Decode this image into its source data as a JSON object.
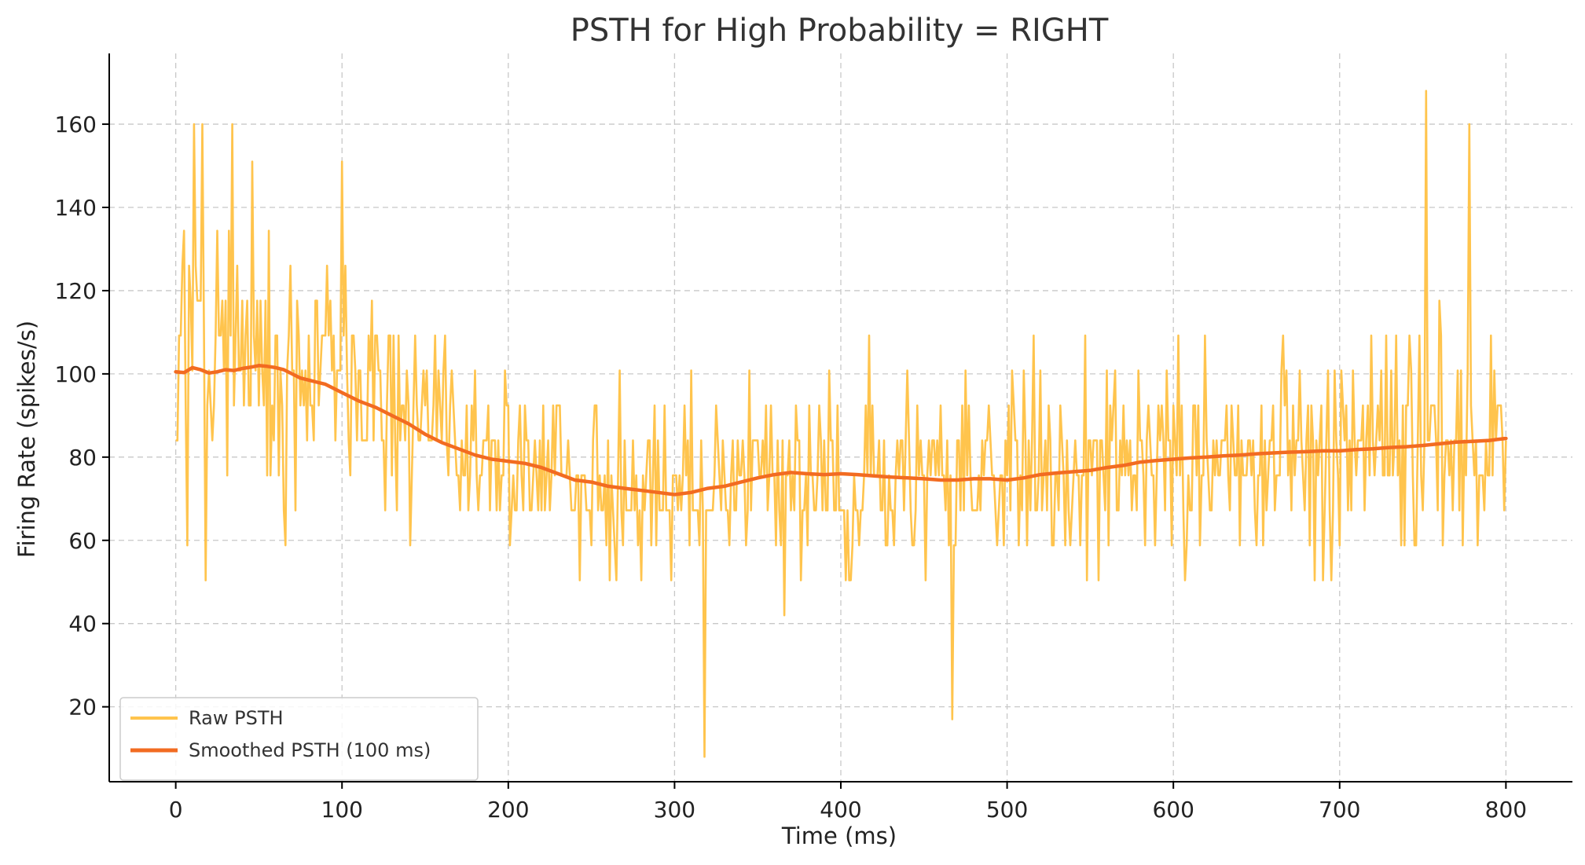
{
  "chart_data": {
    "type": "line",
    "title": "PSTH for High Probability = RIGHT",
    "xlabel": "Time (ms)",
    "ylabel": "Firing Rate (spikes/s)",
    "xlim": [
      -40,
      840
    ],
    "ylim": [
      2,
      177
    ],
    "xticks": [
      0,
      100,
      200,
      300,
      400,
      500,
      600,
      700,
      800
    ],
    "yticks": [
      20,
      40,
      60,
      80,
      100,
      120,
      140,
      160
    ],
    "grid": true,
    "legend_position": "lower-left",
    "series": [
      {
        "name": "Raw PSTH",
        "color": "#FFC44D",
        "style": "raw-noisy",
        "note_values": "piecewise envelope of the noisy raw trace (time ms, baseline rate, spread)",
        "envelope": [
          [
            0,
            100,
            32
          ],
          [
            60,
            101,
            30
          ],
          [
            100,
            96,
            27
          ],
          [
            150,
            84,
            24
          ],
          [
            200,
            79,
            22
          ],
          [
            250,
            74,
            22
          ],
          [
            300,
            71,
            22
          ],
          [
            350,
            74,
            22
          ],
          [
            400,
            76,
            24
          ],
          [
            450,
            75,
            24
          ],
          [
            500,
            75,
            23
          ],
          [
            550,
            77,
            24
          ],
          [
            600,
            79,
            23
          ],
          [
            650,
            81,
            24
          ],
          [
            700,
            81,
            24
          ],
          [
            750,
            83,
            26
          ],
          [
            800,
            85,
            26
          ]
        ],
        "peaks": [
          [
            11,
            160
          ],
          [
            16,
            160
          ],
          [
            34,
            160
          ],
          [
            46,
            151
          ],
          [
            100,
            151
          ],
          [
            318,
            8
          ],
          [
            467,
            17
          ],
          [
            752,
            168
          ],
          [
            778,
            160
          ]
        ]
      },
      {
        "name": "Smoothed PSTH (100 ms)",
        "color": "#F26B21",
        "x": [
          0,
          5,
          10,
          15,
          20,
          25,
          30,
          35,
          40,
          45,
          50,
          55,
          60,
          65,
          70,
          75,
          80,
          85,
          90,
          95,
          100,
          110,
          120,
          130,
          140,
          150,
          160,
          170,
          180,
          190,
          200,
          210,
          220,
          230,
          240,
          250,
          260,
          270,
          280,
          290,
          300,
          310,
          320,
          330,
          340,
          350,
          360,
          370,
          380,
          390,
          400,
          410,
          420,
          430,
          440,
          450,
          460,
          470,
          480,
          490,
          500,
          510,
          520,
          530,
          540,
          550,
          560,
          570,
          580,
          590,
          600,
          610,
          620,
          630,
          640,
          650,
          660,
          670,
          680,
          690,
          700,
          710,
          720,
          730,
          740,
          750,
          760,
          770,
          780,
          790,
          800
        ],
        "y": [
          100.5,
          100.3,
          101.5,
          101.0,
          100.2,
          100.5,
          101.0,
          100.8,
          101.3,
          101.6,
          102.0,
          101.8,
          101.5,
          101.0,
          100.0,
          99.0,
          98.5,
          98.0,
          97.5,
          96.5,
          95.5,
          93.5,
          92.0,
          90.0,
          88.0,
          85.5,
          83.5,
          82.0,
          80.5,
          79.5,
          79.0,
          78.5,
          77.5,
          76.0,
          74.5,
          74.0,
          73.0,
          72.5,
          72.0,
          71.5,
          71.0,
          71.5,
          72.5,
          73.0,
          74.0,
          75.0,
          75.8,
          76.3,
          76.0,
          75.8,
          76.0,
          75.8,
          75.5,
          75.2,
          75.0,
          74.8,
          74.5,
          74.5,
          74.8,
          74.8,
          74.5,
          75.0,
          75.8,
          76.2,
          76.5,
          76.8,
          77.5,
          78.0,
          78.8,
          79.2,
          79.5,
          79.8,
          80.0,
          80.3,
          80.5,
          80.8,
          81.0,
          81.2,
          81.3,
          81.5,
          81.5,
          81.8,
          82.0,
          82.3,
          82.5,
          82.8,
          83.2,
          83.6,
          83.8,
          84.0,
          84.5
        ]
      }
    ]
  }
}
